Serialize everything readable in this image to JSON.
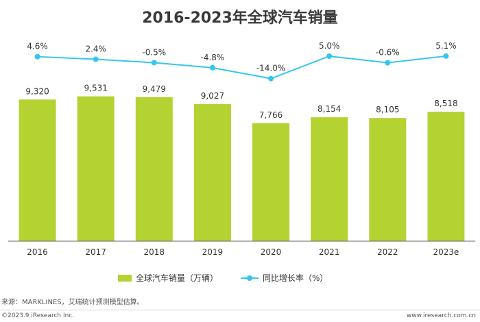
{
  "chart_data": {
    "type": "bar",
    "title": "2016-2023年全球汽车销量",
    "categories": [
      "2016",
      "2017",
      "2018",
      "2019",
      "2020",
      "2021",
      "2022",
      "2023e"
    ],
    "series": [
      {
        "name": "全球汽车销量（万辆）",
        "type": "bar",
        "values": [
          9320,
          9531,
          9479,
          9027,
          7766,
          8154,
          8105,
          8518
        ],
        "labels": [
          "9,320",
          "9,531",
          "9,479",
          "9,027",
          "7,766",
          "8,154",
          "8,105",
          "8,518"
        ],
        "color": "#b4d232"
      },
      {
        "name": "同比增长率（%）",
        "type": "line",
        "values": [
          4.6,
          2.4,
          -0.5,
          -4.8,
          -14.0,
          5.0,
          -0.6,
          5.1
        ],
        "labels": [
          "4.6%",
          "2.4%",
          "-0.5%",
          "-4.8%",
          "-14.0%",
          "5.0%",
          "-0.6%",
          "5.1%"
        ],
        "color": "#33c6f0"
      }
    ],
    "legend": "bottom",
    "grid": false
  },
  "source": "来源：MARKLINES，艾瑞统计预测模型估算。",
  "footer": {
    "copyright": "©2023.9 iResearch Inc.",
    "website": "www.iresearch.com.cn"
  }
}
